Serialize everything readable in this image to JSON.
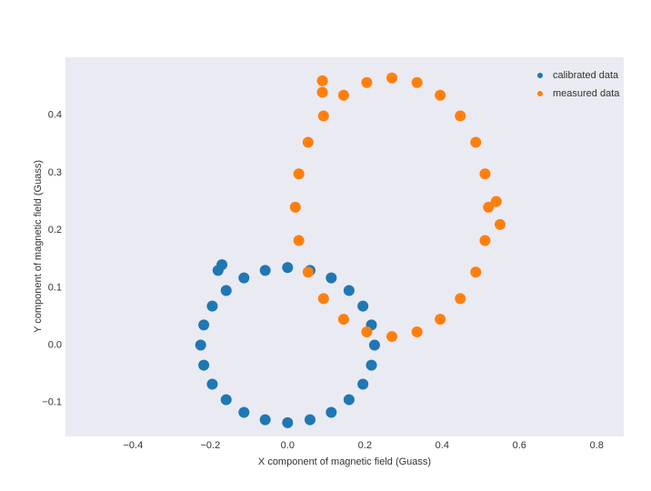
{
  "chart_data": {
    "type": "scatter",
    "xlabel": "X component of magnetic field (Guass)",
    "ylabel": "Y component of magnetic field (Guass)",
    "xlim": [
      -0.575,
      0.87
    ],
    "ylim": [
      -0.159,
      0.501
    ],
    "xticks": [
      -0.4,
      -0.2,
      0.0,
      0.2,
      0.4,
      0.6,
      0.8
    ],
    "yticks": [
      -0.1,
      0.0,
      0.1,
      0.2,
      0.3,
      0.4
    ],
    "legend": "upper right",
    "series": [
      {
        "name": "calibrated data",
        "color": "#1f77b4",
        "x": [
          0.225,
          0.217,
          0.195,
          0.159,
          0.113,
          0.058,
          0.0,
          -0.058,
          -0.113,
          -0.159,
          -0.195,
          -0.217,
          -0.225,
          -0.217,
          -0.195,
          -0.159,
          -0.113,
          -0.058,
          0.0,
          0.058,
          0.113,
          0.159,
          0.195,
          0.217,
          -0.18,
          -0.17
        ],
        "y": [
          0.0,
          0.035,
          0.068,
          0.095,
          0.117,
          0.13,
          0.135,
          0.13,
          0.117,
          0.095,
          0.068,
          0.035,
          0.0,
          -0.035,
          -0.068,
          -0.095,
          -0.117,
          -0.13,
          -0.135,
          -0.13,
          -0.117,
          -0.095,
          -0.068,
          -0.035,
          0.13,
          0.14
        ]
      },
      {
        "name": "measured data",
        "color": "#ff7f0e",
        "x": [
          0.52,
          0.511,
          0.487,
          0.447,
          0.395,
          0.335,
          0.27,
          0.205,
          0.145,
          0.093,
          0.053,
          0.029,
          0.02,
          0.029,
          0.053,
          0.093,
          0.145,
          0.205,
          0.27,
          0.335,
          0.395,
          0.447,
          0.487,
          0.511,
          0.55,
          0.54,
          0.09,
          0.09
        ],
        "y": [
          0.24,
          0.298,
          0.353,
          0.399,
          0.435,
          0.457,
          0.465,
          0.457,
          0.435,
          0.399,
          0.353,
          0.298,
          0.24,
          0.182,
          0.127,
          0.081,
          0.045,
          0.023,
          0.015,
          0.023,
          0.045,
          0.081,
          0.127,
          0.182,
          0.21,
          0.25,
          0.46,
          0.44
        ]
      }
    ]
  }
}
